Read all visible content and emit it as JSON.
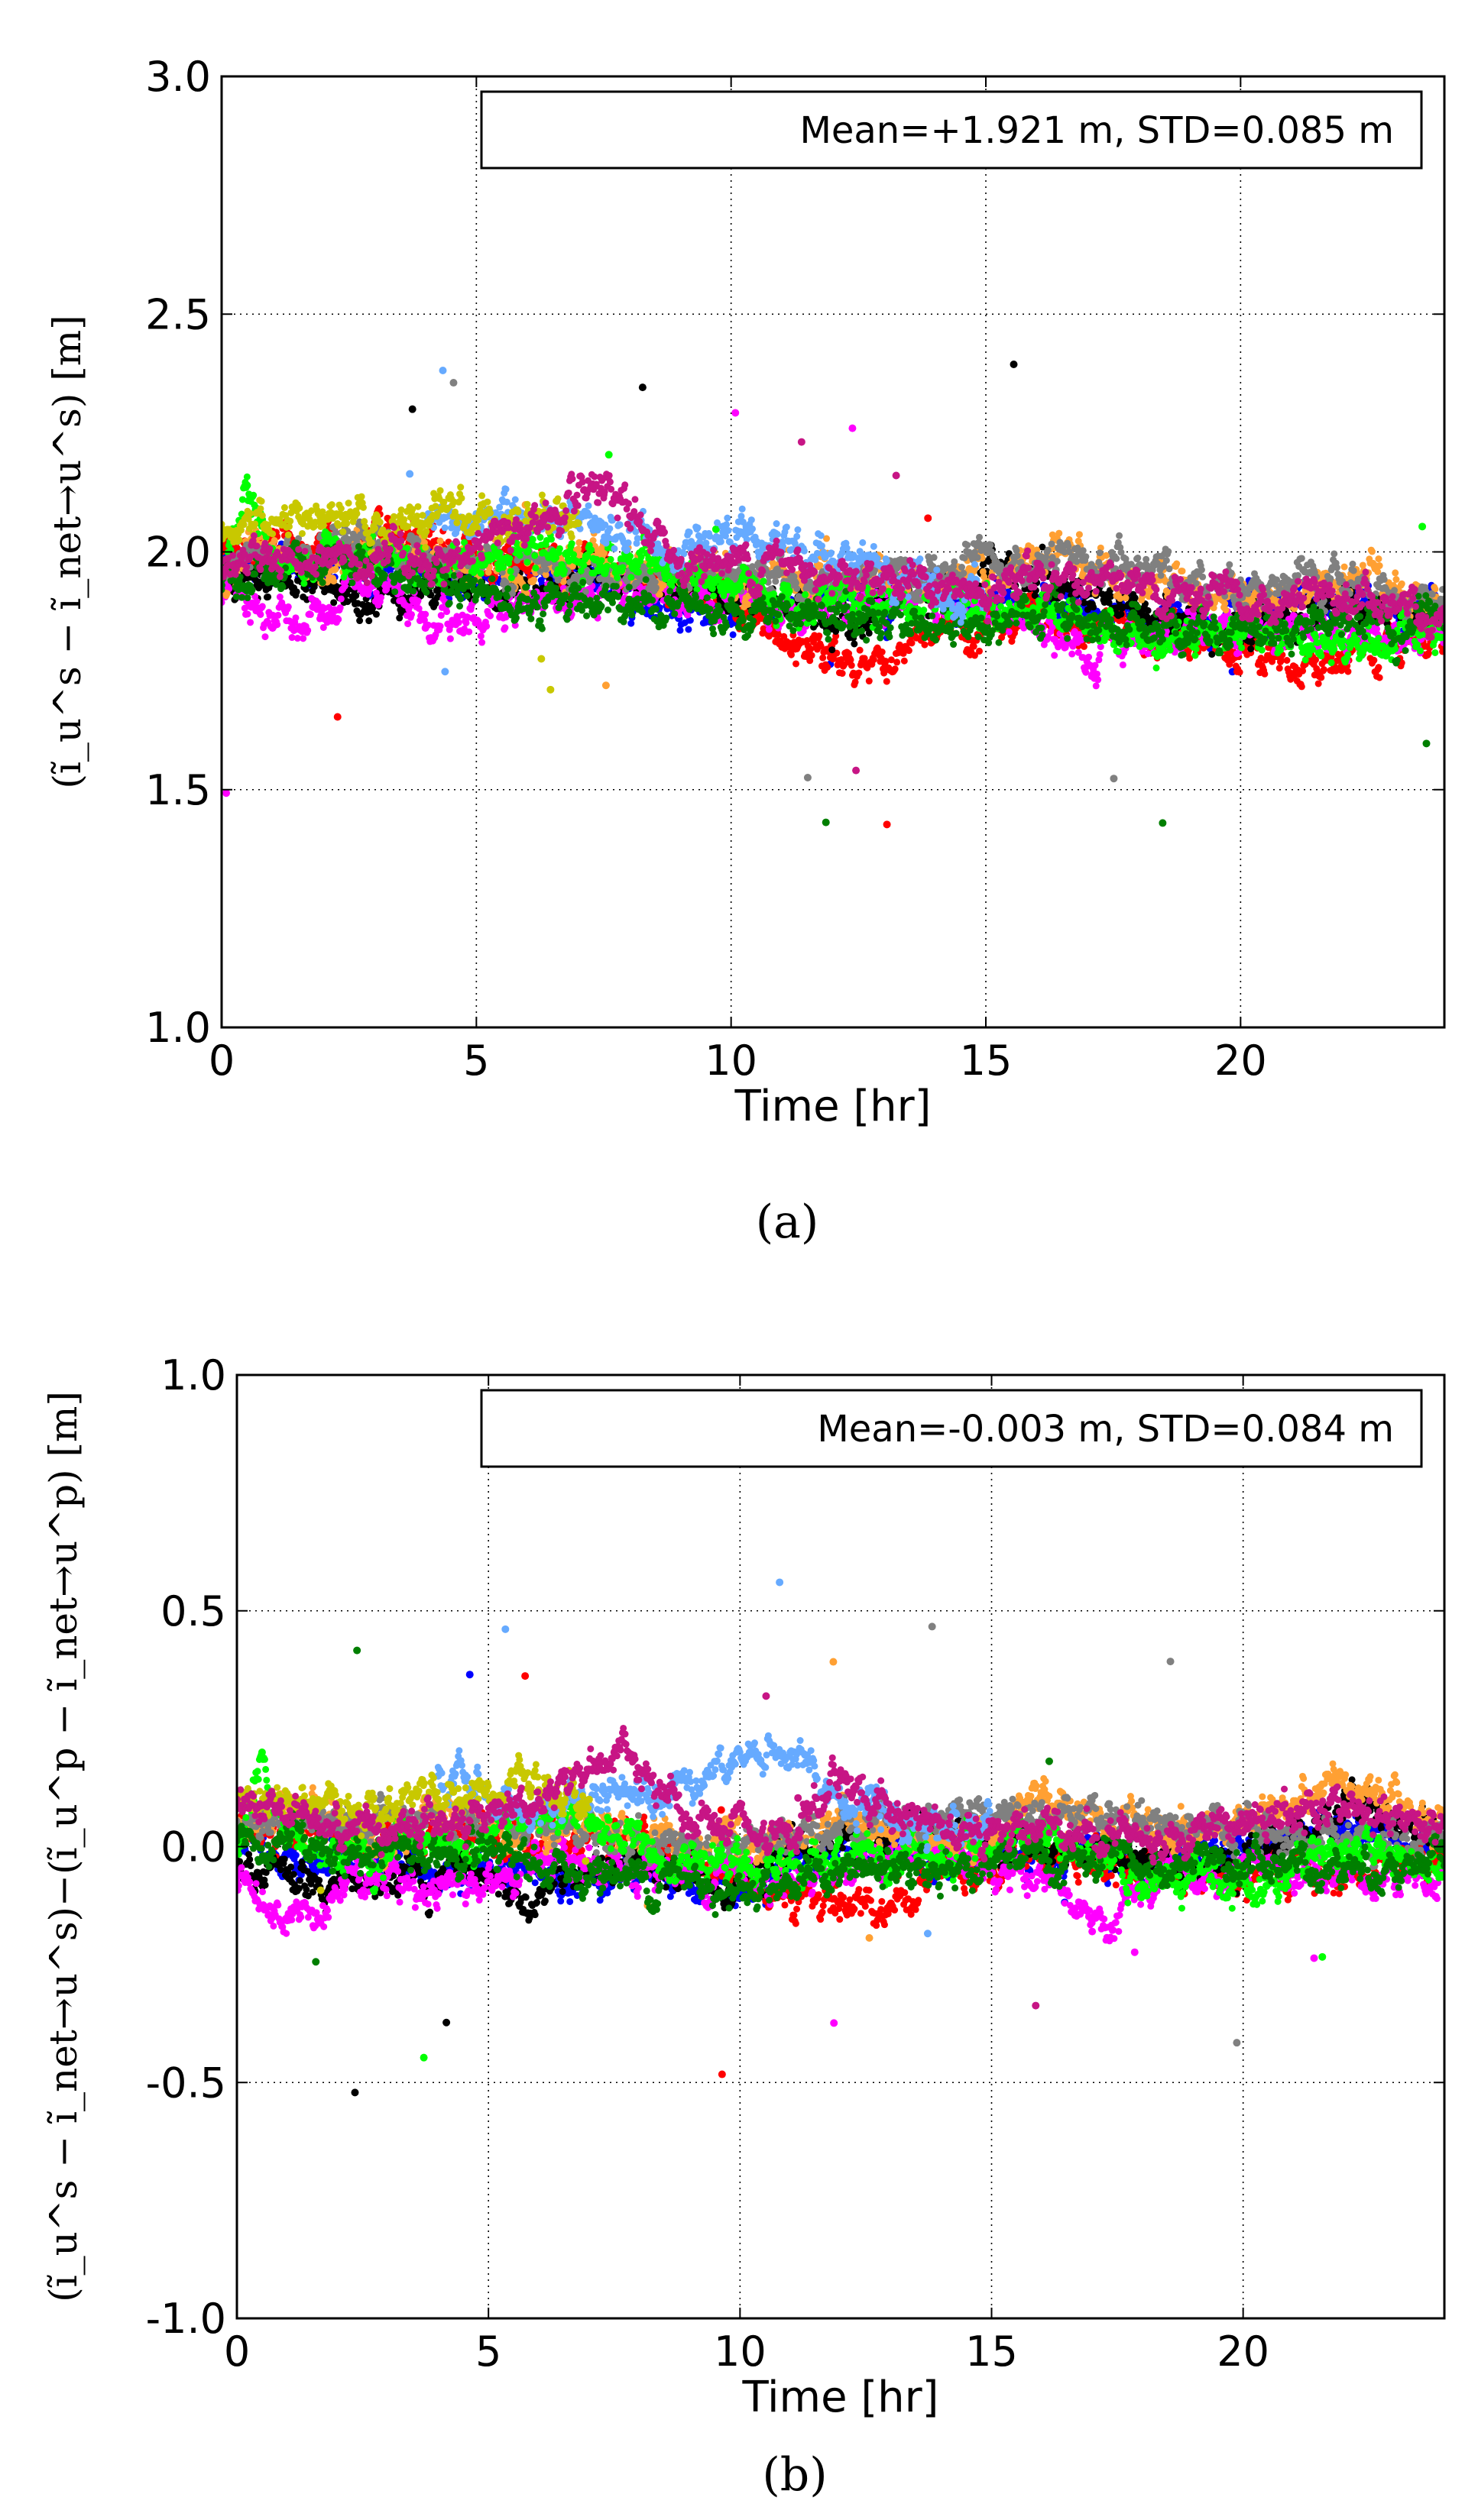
{
  "chart_data": [
    {
      "type": "scatter",
      "panel_label": "(a)",
      "xlabel": "Time [hr]",
      "ylabel": "(ĩ_u^s − ĩ_net→u^s) [m]",
      "xlim": [
        0,
        24
      ],
      "ylim": [
        1.0,
        3.0
      ],
      "xticks": [
        "0",
        "5",
        "10",
        "15",
        "20"
      ],
      "yticks": [
        "1.0",
        "1.5",
        "2.0",
        "2.5",
        "3.0"
      ],
      "grid": true,
      "annotation": "Mean=+1.921 m, STD=0.085 m",
      "annotation_position": "top-right",
      "series": [
        {
          "color": "#0000ff",
          "x": [
            0.0,
            1.5,
            3.0,
            4.5,
            6.0,
            8.0,
            10.0,
            12.0,
            14.0,
            16.0,
            18.0,
            20.0,
            22.0,
            24.0
          ],
          "y": [
            2.02,
            1.96,
            1.97,
            1.94,
            1.96,
            1.93,
            1.86,
            1.92,
            1.88,
            1.9,
            1.86,
            1.88,
            1.9,
            1.87
          ]
        },
        {
          "color": "#ff0000",
          "x": [
            0.0,
            2.0,
            4.0,
            6.0,
            8.0,
            10.0,
            11.0,
            12.0,
            13.0,
            14.0,
            16.0,
            18.0,
            20.0,
            22.0,
            24.0
          ],
          "y": [
            2.0,
            2.02,
            2.0,
            1.98,
            1.97,
            1.9,
            1.8,
            1.78,
            1.77,
            1.82,
            1.85,
            1.82,
            1.8,
            1.76,
            1.82
          ]
        },
        {
          "color": "#000000",
          "x": [
            0.0,
            2.0,
            4.0,
            6.0,
            8.0,
            10.0,
            12.0,
            14.0,
            16.0,
            18.0,
            20.0,
            22.0,
            24.0
          ],
          "y": [
            1.95,
            1.93,
            1.92,
            1.91,
            1.95,
            1.9,
            1.86,
            1.92,
            1.95,
            1.88,
            1.84,
            1.9,
            1.87
          ]
        },
        {
          "color": "#ff00ff",
          "x": [
            0.0,
            1.0,
            2.0,
            3.0,
            4.0,
            6.0,
            8.0,
            10.0,
            12.0,
            14.0,
            16.0,
            17.0,
            18.0,
            20.0,
            22.0,
            24.0
          ],
          "y": [
            1.92,
            1.84,
            1.86,
            1.93,
            1.84,
            1.9,
            1.93,
            1.9,
            1.88,
            1.9,
            1.86,
            1.76,
            1.82,
            1.85,
            1.83,
            1.82
          ]
        },
        {
          "color": "#ffa033",
          "x": [
            0.0,
            2.0,
            4.0,
            6.0,
            8.0,
            10.0,
            12.0,
            14.0,
            16.0,
            18.0,
            20.0,
            22.0,
            24.0
          ],
          "y": [
            1.98,
            1.98,
            1.97,
            1.98,
            1.97,
            1.94,
            1.96,
            1.92,
            1.98,
            1.95,
            1.9,
            1.95,
            1.9
          ]
        },
        {
          "color": "#808080",
          "x": [
            0.0,
            2.0,
            4.0,
            6.0,
            8.0,
            10.0,
            12.0,
            14.0,
            16.0,
            18.0,
            20.0,
            22.0,
            24.0
          ],
          "y": [
            1.97,
            2.0,
            1.99,
            1.98,
            1.96,
            1.95,
            1.93,
            1.95,
            1.97,
            1.97,
            1.93,
            1.92,
            1.9
          ]
        },
        {
          "color": "#00ff00",
          "x": [
            0.0,
            0.5,
            1.0,
            2.0,
            4.0,
            6.0,
            8.0,
            10.0,
            12.0,
            14.0,
            16.0,
            18.0,
            20.0,
            22.0,
            24.0
          ],
          "y": [
            1.95,
            2.14,
            1.98,
            2.02,
            1.96,
            2.0,
            1.98,
            1.92,
            1.9,
            1.88,
            1.88,
            1.82,
            1.84,
            1.8,
            1.82
          ]
        },
        {
          "color": "#007f00",
          "x": [
            0.0,
            2.0,
            4.0,
            6.0,
            8.0,
            10.0,
            12.0,
            14.0,
            16.0,
            18.0,
            20.0,
            22.0,
            24.0
          ],
          "y": [
            1.93,
            1.96,
            1.95,
            1.9,
            1.9,
            1.88,
            1.86,
            1.84,
            1.86,
            1.85,
            1.84,
            1.86,
            1.84
          ]
        },
        {
          "color": "#66aaff",
          "x": [
            4.0,
            5.0,
            6.0,
            11.0,
            12.0,
            13.0,
            14.0,
            15.0
          ],
          "y": [
            2.06,
            2.08,
            2.05,
            2.02,
            1.98,
            1.95,
            1.92,
            1.9
          ]
        },
        {
          "color": "#c8c800",
          "x": [
            0.0,
            2.0,
            3.0,
            6.0,
            7.0
          ],
          "y": [
            2.05,
            2.07,
            2.05,
            2.08,
            2.06
          ]
        },
        {
          "color": "#c71585",
          "x": [
            0.0,
            2.0,
            4.0,
            6.0,
            7.5,
            9.0,
            11.0,
            13.0,
            15.0,
            16.0,
            18.0,
            20.0,
            22.0,
            24.0
          ],
          "y": [
            1.98,
            2.0,
            1.98,
            2.05,
            2.12,
            1.98,
            1.98,
            1.95,
            1.9,
            1.96,
            1.92,
            1.88,
            1.9,
            1.87
          ]
        }
      ]
    },
    {
      "type": "scatter",
      "panel_label": "(b)",
      "xlabel": "Time [hr]",
      "ylabel": "(ĩ_u^s − ĩ_net→u^s)−(ĩ_u^p − ĩ_net→u^p) [m]",
      "xlim": [
        0,
        24
      ],
      "ylim": [
        -1.0,
        1.0
      ],
      "xticks": [
        "0",
        "5",
        "10",
        "15",
        "20"
      ],
      "yticks": [
        "-1.0",
        "-0.5",
        "0.0",
        "0.5",
        "1.0"
      ],
      "grid": true,
      "annotation": "Mean=-0.003 m, STD=0.084 m",
      "annotation_position": "top-right",
      "series": [
        {
          "color": "#0000ff",
          "x": [
            0.0,
            1.5,
            3.0,
            4.5,
            6.0,
            8.0,
            10.0,
            12.0,
            14.0,
            16.0,
            18.0,
            20.0,
            22.0,
            24.0
          ],
          "y": [
            0.05,
            -0.04,
            -0.03,
            -0.06,
            -0.04,
            -0.06,
            -0.1,
            0.0,
            -0.05,
            0.0,
            -0.05,
            0.0,
            0.05,
            0.0
          ]
        },
        {
          "color": "#ff0000",
          "x": [
            0.0,
            2.0,
            4.0,
            6.0,
            8.0,
            10.0,
            11.0,
            12.0,
            13.0,
            14.0,
            16.0,
            18.0,
            20.0,
            22.0,
            24.0
          ],
          "y": [
            0.05,
            0.03,
            0.02,
            0.0,
            0.0,
            -0.05,
            -0.1,
            -0.12,
            -0.12,
            -0.05,
            -0.02,
            -0.05,
            -0.06,
            -0.06,
            0.0
          ]
        },
        {
          "color": "#000000",
          "x": [
            0.0,
            2.0,
            4.0,
            6.0,
            8.0,
            10.0,
            12.0,
            14.0,
            16.0,
            18.0,
            20.0,
            22.0,
            24.0
          ],
          "y": [
            -0.03,
            -0.08,
            -0.06,
            -0.1,
            -0.05,
            -0.06,
            0.02,
            0.02,
            0.0,
            -0.03,
            -0.05,
            0.1,
            0.02
          ]
        },
        {
          "color": "#ff00ff",
          "x": [
            0.0,
            1.0,
            2.0,
            3.0,
            4.0,
            6.0,
            8.0,
            10.0,
            12.0,
            14.0,
            16.0,
            17.0,
            18.0,
            20.0,
            22.0,
            24.0
          ],
          "y": [
            -0.05,
            -0.15,
            -0.1,
            -0.05,
            -0.1,
            -0.05,
            -0.05,
            -0.06,
            -0.04,
            -0.02,
            -0.06,
            -0.18,
            -0.1,
            -0.06,
            -0.06,
            -0.05
          ]
        },
        {
          "color": "#ffa033",
          "x": [
            0.0,
            2.0,
            3.0,
            4.0,
            6.0,
            8.0,
            10.0,
            12.0,
            14.0,
            16.0,
            18.0,
            20.0,
            22.0,
            24.0
          ],
          "y": [
            0.05,
            0.05,
            0.0,
            0.08,
            0.05,
            0.02,
            0.0,
            0.05,
            0.0,
            0.1,
            0.02,
            0.05,
            0.15,
            0.05
          ]
        },
        {
          "color": "#808080",
          "x": [
            0.0,
            2.0,
            4.0,
            6.0,
            8.0,
            10.0,
            12.0,
            14.0,
            16.0,
            18.0,
            20.0,
            22.0,
            24.0
          ],
          "y": [
            0.05,
            0.05,
            0.04,
            0.03,
            0.02,
            0.0,
            0.05,
            0.07,
            0.06,
            0.06,
            0.03,
            0.02,
            0.02
          ]
        },
        {
          "color": "#00ff00",
          "x": [
            0.0,
            0.5,
            1.0,
            2.0,
            4.0,
            6.0,
            8.0,
            10.0,
            12.0,
            14.0,
            16.0,
            18.0,
            20.0,
            22.0,
            24.0
          ],
          "y": [
            0.0,
            0.2,
            0.02,
            -0.02,
            0.0,
            0.05,
            0.02,
            -0.05,
            -0.03,
            -0.02,
            0.02,
            -0.08,
            -0.08,
            0.0,
            -0.03
          ]
        },
        {
          "color": "#007f00",
          "x": [
            0.0,
            2.0,
            4.0,
            6.0,
            8.0,
            10.0,
            12.0,
            14.0,
            16.0,
            18.0,
            20.0,
            22.0,
            24.0
          ],
          "y": [
            0.02,
            0.0,
            -0.02,
            -0.05,
            -0.06,
            -0.08,
            -0.06,
            -0.05,
            -0.03,
            -0.05,
            -0.04,
            -0.04,
            -0.04
          ]
        },
        {
          "color": "#66aaff",
          "x": [
            4.0,
            5.0,
            6.0,
            11.0,
            11.5,
            12.0,
            13.0,
            14.0,
            15.0
          ],
          "y": [
            0.15,
            0.1,
            0.08,
            0.2,
            0.15,
            0.1,
            0.05,
            0.05,
            0.03
          ]
        },
        {
          "color": "#c8c800",
          "x": [
            0.0,
            2.0,
            3.0,
            4.0,
            6.0,
            7.0
          ],
          "y": [
            0.1,
            0.08,
            0.1,
            0.1,
            0.12,
            0.1
          ]
        },
        {
          "color": "#c71585",
          "x": [
            0.0,
            2.0,
            4.0,
            6.0,
            7.5,
            9.0,
            11.0,
            12.0,
            13.0,
            15.0,
            16.0,
            18.0,
            20.0,
            22.0,
            24.0
          ],
          "y": [
            0.1,
            0.05,
            0.05,
            0.1,
            0.2,
            0.05,
            0.0,
            0.15,
            0.08,
            0.03,
            0.05,
            0.02,
            0.05,
            0.08,
            0.05
          ]
        }
      ]
    }
  ]
}
